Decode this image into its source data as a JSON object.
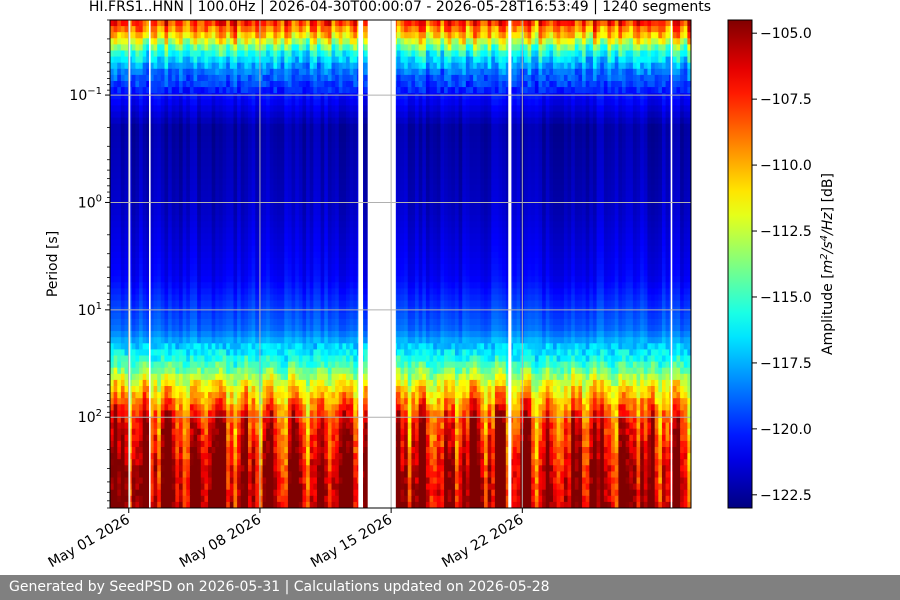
{
  "chart_data": {
    "type": "heatmap",
    "title": "HI.FRS1..HNN | 100.0Hz | 2026-04-30T00:00:07 - 2026-05-28T16:53:49 | 1240 segments",
    "ylabel": "Period [s]",
    "xlabel": "",
    "y_scale": "log",
    "y_inverted": true,
    "ylim": [
      0.02,
      700
    ],
    "y_ticks": [
      {
        "value": 0.1,
        "base": "10",
        "exp": "−1"
      },
      {
        "value": 1,
        "base": "10",
        "exp": "0"
      },
      {
        "value": 10,
        "base": "10",
        "exp": "1"
      },
      {
        "value": 100,
        "base": "10",
        "exp": "2"
      }
    ],
    "xlim": [
      "2026-04-30",
      "2026-05-31"
    ],
    "x_ticks": [
      {
        "date": "2026-05-01",
        "label": "May 01 2026"
      },
      {
        "date": "2026-05-08",
        "label": "May 08 2026"
      },
      {
        "date": "2026-05-15",
        "label": "May 15 2026"
      },
      {
        "date": "2026-05-22",
        "label": "May 22 2026"
      }
    ],
    "grid": true,
    "data_gaps": [
      {
        "start": "2026-05-01 00:00",
        "end": "2026-05-01 02:00"
      },
      {
        "start": "2026-05-02 02:00",
        "end": "2026-05-02 04:00"
      },
      {
        "start": "2026-05-13 06:00",
        "end": "2026-05-13 12:00"
      },
      {
        "start": "2026-05-13 18:00",
        "end": "2026-05-15 06:00"
      },
      {
        "start": "2026-05-21 06:00",
        "end": "2026-05-21 10:00"
      },
      {
        "start": "2026-05-29 22:00",
        "end": "2026-05-30 00:00"
      }
    ],
    "colormap": "jet",
    "colorbar": {
      "label": "Amplitude [m²/s⁴/Hz] [dB]",
      "label_main": "Amplitude [",
      "label_unit": "m",
      "label_sup1": "2",
      "label_mid": "/s",
      "label_sup2": "4",
      "label_end": "/Hz",
      "label_close": "] [dB]",
      "range": [
        -123.0,
        -104.5
      ],
      "ticks": [
        {
          "value": -105.0,
          "label": "−105.0"
        },
        {
          "value": -107.5,
          "label": "−107.5"
        },
        {
          "value": -110.0,
          "label": "−110.0"
        },
        {
          "value": -112.5,
          "label": "−112.5"
        },
        {
          "value": -115.0,
          "label": "−115.0"
        },
        {
          "value": -117.5,
          "label": "−117.5"
        },
        {
          "value": -120.0,
          "label": "−120.0"
        },
        {
          "value": -122.5,
          "label": "−122.5"
        }
      ]
    },
    "psd_profile": [
      {
        "period": 0.02,
        "db": -107.0
      },
      {
        "period": 0.028,
        "db": -110.5
      },
      {
        "period": 0.04,
        "db": -115.5
      },
      {
        "period": 0.06,
        "db": -118.5
      },
      {
        "period": 0.1,
        "db": -120.5
      },
      {
        "period": 0.2,
        "db": -122.3
      },
      {
        "period": 1.0,
        "db": -121.8
      },
      {
        "period": 5.0,
        "db": -120.8
      },
      {
        "period": 15.0,
        "db": -118.8
      },
      {
        "period": 30.0,
        "db": -115.5
      },
      {
        "period": 50.0,
        "db": -111.5
      },
      {
        "period": 100.0,
        "db": -107.5
      },
      {
        "period": 300.0,
        "db": -105.5
      },
      {
        "period": 700.0,
        "db": -104.8
      }
    ]
  },
  "footer": {
    "text": "Generated by SeedPSD on 2026-05-31 | Calculations updated on 2026-05-28"
  }
}
